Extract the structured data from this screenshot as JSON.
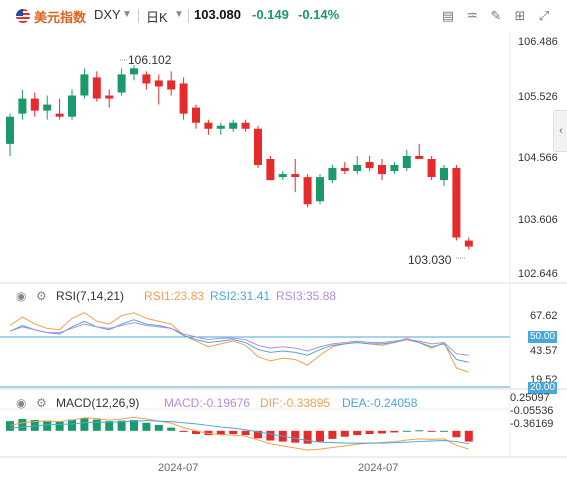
{
  "header": {
    "symbol_name": "美元指数",
    "symbol_code": "DXY",
    "interval": "日K",
    "last_price": "103.080",
    "change": "-0.149",
    "change_pct": "-0.14%"
  },
  "colors": {
    "up": "#1a9a6a",
    "down": "#e52b2b",
    "rsi1": "#f0a050",
    "rsi2": "#4aa8d8",
    "rsi3": "#b38fd9",
    "dif": "#f0a050",
    "dea": "#4aa8d8"
  },
  "icons": [
    "flag-us-icon",
    "chevron-down-icon",
    "candle-icon",
    "indicator-icon",
    "draw-icon",
    "camera-icon",
    "fullscreen-icon",
    "settings-icon",
    "eye-icon",
    "gear-icon",
    "chevron-left-icon"
  ],
  "main_chart": {
    "y_ticks": [
      "106.486",
      "105.526",
      "104.566",
      "103.606",
      "102.646"
    ],
    "high_label": "106.102",
    "low_label": "103.030"
  },
  "rsi": {
    "title": "RSI(7,14,21)",
    "rsi1": "RSI1:23.83",
    "rsi2": "RSI2:31.41",
    "rsi3": "RSI3:35.88",
    "y_ticks": [
      "67.62",
      "43.57",
      "19.52"
    ],
    "tag_50": "50.00",
    "tag_20": "20.00"
  },
  "macd": {
    "title": "MACD(12,26,9)",
    "macd": "MACD:-0.19676",
    "dif": "DIF:-0.33895",
    "dea": "DEA:-0.24058",
    "y_ticks": [
      "0.25097",
      "-0.05536",
      "-0.36169"
    ]
  },
  "x_axis": {
    "labels": [
      "2024-07",
      "2024-07"
    ]
  },
  "chart_data": {
    "type": "candlestick",
    "ylim": [
      102.646,
      106.486
    ],
    "candles": [
      {
        "o": 104.8,
        "h": 105.3,
        "l": 104.6,
        "c": 105.25
      },
      {
        "o": 105.3,
        "h": 105.7,
        "l": 105.2,
        "c": 105.55
      },
      {
        "o": 105.55,
        "h": 105.65,
        "l": 105.25,
        "c": 105.35
      },
      {
        "o": 105.35,
        "h": 105.6,
        "l": 105.2,
        "c": 105.45
      },
      {
        "o": 105.3,
        "h": 105.55,
        "l": 105.2,
        "c": 105.25
      },
      {
        "o": 105.25,
        "h": 105.7,
        "l": 105.2,
        "c": 105.6
      },
      {
        "o": 105.6,
        "h": 106.05,
        "l": 105.55,
        "c": 105.95
      },
      {
        "o": 105.9,
        "h": 106.0,
        "l": 105.5,
        "c": 105.55
      },
      {
        "o": 105.6,
        "h": 105.7,
        "l": 105.4,
        "c": 105.55
      },
      {
        "o": 105.65,
        "h": 106.05,
        "l": 105.6,
        "c": 105.95
      },
      {
        "o": 105.95,
        "h": 106.1,
        "l": 105.85,
        "c": 106.05
      },
      {
        "o": 105.95,
        "h": 106.0,
        "l": 105.7,
        "c": 105.8
      },
      {
        "o": 105.85,
        "h": 105.95,
        "l": 105.45,
        "c": 105.75
      },
      {
        "o": 105.85,
        "h": 106.0,
        "l": 105.6,
        "c": 105.7
      },
      {
        "o": 105.8,
        "h": 105.9,
        "l": 105.2,
        "c": 105.3
      },
      {
        "o": 105.4,
        "h": 105.45,
        "l": 105.05,
        "c": 105.15
      },
      {
        "o": 105.15,
        "h": 105.2,
        "l": 104.95,
        "c": 105.05
      },
      {
        "o": 105.05,
        "h": 105.15,
        "l": 104.95,
        "c": 105.1
      },
      {
        "o": 105.05,
        "h": 105.2,
        "l": 105.0,
        "c": 105.15
      },
      {
        "o": 105.15,
        "h": 105.2,
        "l": 105.0,
        "c": 105.05
      },
      {
        "o": 105.05,
        "h": 105.1,
        "l": 104.4,
        "c": 104.45
      },
      {
        "o": 104.55,
        "h": 104.6,
        "l": 104.2,
        "c": 104.2
      },
      {
        "o": 104.25,
        "h": 104.35,
        "l": 104.2,
        "c": 104.3
      },
      {
        "o": 104.3,
        "h": 104.55,
        "l": 104.0,
        "c": 104.25
      },
      {
        "o": 104.25,
        "h": 104.3,
        "l": 103.75,
        "c": 103.8
      },
      {
        "o": 103.85,
        "h": 104.3,
        "l": 103.8,
        "c": 104.25
      },
      {
        "o": 104.2,
        "h": 104.45,
        "l": 104.15,
        "c": 104.4
      },
      {
        "o": 104.4,
        "h": 104.5,
        "l": 104.3,
        "c": 104.35
      },
      {
        "o": 104.35,
        "h": 104.6,
        "l": 104.3,
        "c": 104.45
      },
      {
        "o": 104.5,
        "h": 104.6,
        "l": 104.35,
        "c": 104.4
      },
      {
        "o": 104.45,
        "h": 104.55,
        "l": 104.2,
        "c": 104.3
      },
      {
        "o": 104.35,
        "h": 104.5,
        "l": 104.3,
        "c": 104.45
      },
      {
        "o": 104.4,
        "h": 104.7,
        "l": 104.35,
        "c": 104.6
      },
      {
        "o": 104.6,
        "h": 104.8,
        "l": 104.55,
        "c": 104.55
      },
      {
        "o": 104.55,
        "h": 104.6,
        "l": 104.2,
        "c": 104.25
      },
      {
        "o": 104.2,
        "h": 104.45,
        "l": 104.1,
        "c": 104.4
      },
      {
        "o": 104.4,
        "h": 104.45,
        "l": 103.2,
        "c": 103.25
      },
      {
        "o": 103.2,
        "h": 103.25,
        "l": 103.05,
        "c": 103.1
      }
    ],
    "rsi_ylim": [
      15,
      75
    ],
    "rsi1": [
      57,
      63,
      58,
      55,
      54,
      62,
      66,
      60,
      58,
      64,
      66,
      62,
      60,
      58,
      50,
      46,
      42,
      44,
      46,
      43,
      35,
      32,
      34,
      33,
      29,
      36,
      42,
      44,
      45,
      44,
      43,
      45,
      48,
      45,
      41,
      45,
      27,
      24
    ],
    "rsi2": [
      53,
      57,
      54,
      52,
      51,
      56,
      60,
      56,
      54,
      58,
      61,
      58,
      57,
      55,
      50,
      47,
      45,
      46,
      47,
      45,
      40,
      38,
      39,
      38,
      36,
      40,
      43,
      44,
      45,
      44,
      44,
      45,
      47,
      45,
      42,
      44,
      33,
      31
    ],
    "rsi3": [
      53,
      56,
      54,
      52,
      52,
      55,
      58,
      56,
      55,
      57,
      59,
      57,
      56,
      55,
      51,
      49,
      47,
      48,
      48,
      47,
      43,
      41,
      42,
      41,
      39,
      42,
      44,
      45,
      46,
      45,
      45,
      46,
      47,
      46,
      44,
      45,
      37,
      36
    ],
    "macd_ylim": [
      -0.45,
      0.35
    ],
    "macd_hist": [
      0.18,
      0.22,
      0.2,
      0.19,
      0.18,
      0.21,
      0.24,
      0.21,
      0.18,
      0.19,
      0.2,
      0.15,
      0.11,
      0.06,
      -0.02,
      -0.06,
      -0.08,
      -0.07,
      -0.06,
      -0.08,
      -0.14,
      -0.18,
      -0.2,
      -0.22,
      -0.24,
      -0.2,
      -0.15,
      -0.11,
      -0.08,
      -0.06,
      -0.05,
      -0.03,
      0.0,
      0.01,
      -0.01,
      0.0,
      -0.12,
      -0.2
    ],
    "dif": [
      0.1,
      0.15,
      0.17,
      0.18,
      0.17,
      0.2,
      0.24,
      0.23,
      0.2,
      0.22,
      0.25,
      0.22,
      0.18,
      0.14,
      0.06,
      0.0,
      -0.05,
      -0.07,
      -0.08,
      -0.1,
      -0.17,
      -0.24,
      -0.28,
      -0.32,
      -0.36,
      -0.34,
      -0.31,
      -0.28,
      -0.25,
      -0.23,
      -0.22,
      -0.2,
      -0.17,
      -0.15,
      -0.16,
      -0.15,
      -0.27,
      -0.34
    ],
    "dea": [
      0.05,
      0.07,
      0.09,
      0.11,
      0.12,
      0.13,
      0.15,
      0.16,
      0.16,
      0.17,
      0.18,
      0.19,
      0.18,
      0.17,
      0.15,
      0.13,
      0.1,
      0.07,
      0.05,
      0.02,
      -0.02,
      -0.06,
      -0.1,
      -0.14,
      -0.18,
      -0.21,
      -0.22,
      -0.23,
      -0.23,
      -0.23,
      -0.23,
      -0.22,
      -0.21,
      -0.2,
      -0.19,
      -0.18,
      -0.2,
      -0.24
    ]
  }
}
